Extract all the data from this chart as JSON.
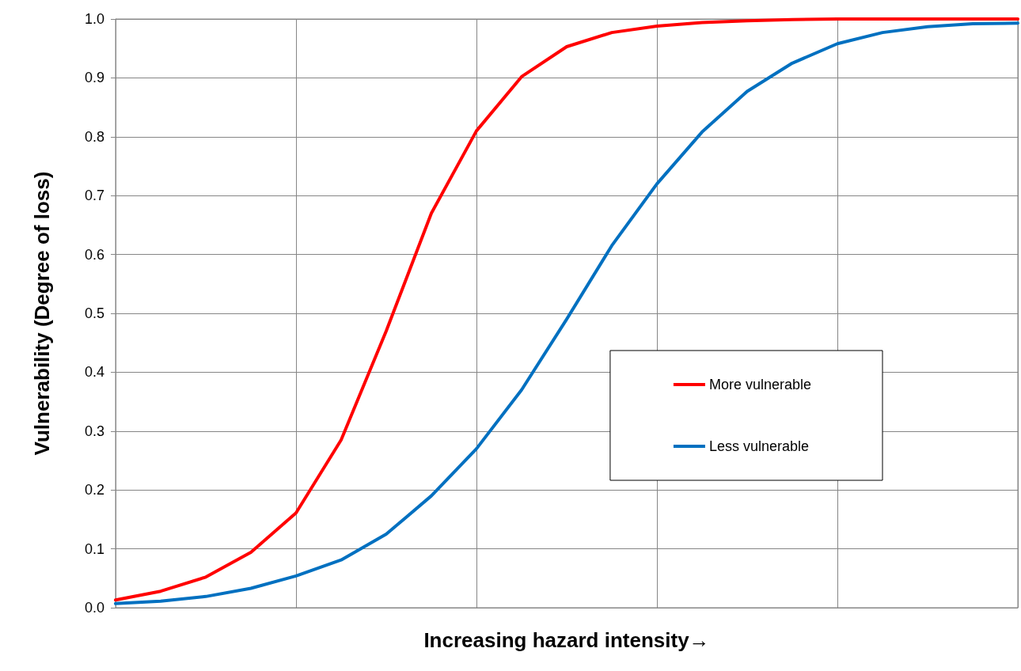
{
  "chart_data": {
    "type": "line",
    "xlabel": "Increasing hazard intensity→",
    "ylabel": "Vulnerability (Degree of loss)",
    "categories": [
      null,
      null,
      null,
      null,
      null,
      null,
      null,
      null,
      null,
      null,
      null,
      null,
      null,
      null,
      null,
      null,
      null,
      null,
      null,
      null,
      null
    ],
    "ylim": [
      0,
      1
    ],
    "yticks": [
      {
        "value": 0,
        "label": "0.0"
      },
      {
        "value": 0.1,
        "label": "0.1"
      },
      {
        "value": 0.2,
        "label": "0.2"
      },
      {
        "value": 0.3,
        "label": "0.3"
      },
      {
        "value": 0.4,
        "label": "0.4"
      },
      {
        "value": 0.5,
        "label": "0.5"
      },
      {
        "value": 0.6,
        "label": "0.6"
      },
      {
        "value": 0.7,
        "label": "0.7"
      },
      {
        "value": 0.8,
        "label": "0.8"
      },
      {
        "value": 0.9,
        "label": "0.9"
      },
      {
        "value": 1,
        "label": "1.0"
      }
    ],
    "grid": true,
    "legend": "right",
    "marker": "none",
    "line_style": "solid",
    "series": [
      {
        "name": "More vulnerable",
        "color": "#ff0000",
        "values": [
          0.013,
          0.028,
          0.052,
          0.094,
          0.161,
          0.285,
          0.47,
          0.67,
          0.81,
          0.902,
          0.953,
          0.977,
          0.988,
          0.994,
          0.997,
          0.999,
          1.0,
          1.0,
          1.0,
          1.0,
          1.0
        ]
      },
      {
        "name": "Less vulnerable",
        "color": "#0070c0",
        "values": [
          0.007,
          0.011,
          0.019,
          0.033,
          0.054,
          0.081,
          0.125,
          0.19,
          0.27,
          0.37,
          0.49,
          0.615,
          0.72,
          0.808,
          0.877,
          0.925,
          0.958,
          0.977,
          0.987,
          0.992,
          0.993
        ]
      }
    ]
  }
}
